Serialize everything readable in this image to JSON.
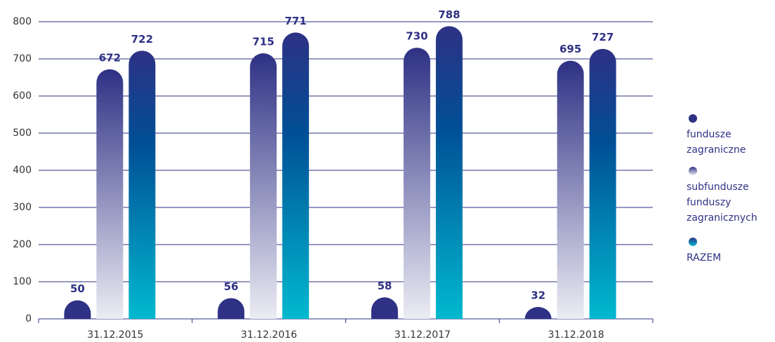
{
  "chart_data": {
    "type": "bar",
    "categories": [
      "31.12.2015",
      "31.12.2016",
      "31.12.2017",
      "31.12.2018"
    ],
    "series": [
      {
        "name": "fundusze zagraniczne",
        "color": "#2e3184",
        "values": [
          50,
          56,
          58,
          32
        ]
      },
      {
        "name": "subfundusze funduszy zagranicznych",
        "color": "#5b5d9c",
        "values": [
          672,
          715,
          730,
          695
        ]
      },
      {
        "name": "RAZEM",
        "color": "#00a3c4",
        "values": [
          722,
          771,
          788,
          727
        ]
      }
    ],
    "ylim": [
      0,
      800
    ],
    "yticks": [
      0,
      100,
      200,
      300,
      400,
      500,
      600,
      700,
      800
    ],
    "grid": true,
    "legend": "right"
  }
}
